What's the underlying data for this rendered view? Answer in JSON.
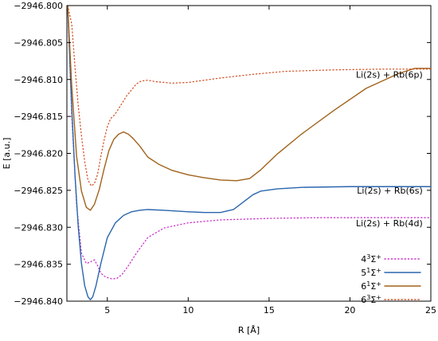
{
  "chart_data": {
    "type": "line",
    "title": "",
    "xlabel": "R [Å]",
    "ylabel": "E [a.u.]",
    "xlim": [
      2.5,
      25
    ],
    "ylim": [
      -2946.84,
      -2946.8
    ],
    "xticks": [
      5,
      10,
      15,
      20,
      25
    ],
    "xtick_labels": [
      "5",
      "10",
      "15",
      "20",
      "25"
    ],
    "yticks": [
      -2946.84,
      -2946.835,
      -2946.83,
      -2946.825,
      -2946.82,
      -2946.815,
      -2946.81,
      -2946.805,
      -2946.8
    ],
    "ytick_labels": [
      "−2946.840",
      "−2946.835",
      "−2946.830",
      "−2946.825",
      "−2946.820",
      "−2946.815",
      "−2946.810",
      "−2946.805",
      "−2946.800"
    ],
    "grid": false,
    "legend_position": "bottom-right",
    "annotations": [
      {
        "text": "Li(2s) + Rb(6p)",
        "x": 24.5,
        "y": -2946.8102
      },
      {
        "text": "Li(2s) + Rb(6s)",
        "x": 24.5,
        "y": -2946.8259
      },
      {
        "text": "Li(2s) + Rb(4d)",
        "x": 24.5,
        "y": -2946.8303
      }
    ],
    "series": [
      {
        "name": "4³Σ⁺",
        "label_main": "4",
        "label_sup": "3",
        "label_sym": "Σ",
        "label_sup2": "+",
        "color": "#cc33cc",
        "style": "dotted",
        "x": [
          2.55,
          2.8,
          3.1,
          3.4,
          3.7,
          3.95,
          4.2,
          4.4,
          4.6,
          4.8,
          5.0,
          5.3,
          5.6,
          5.9,
          6.3,
          6.8,
          7.5,
          8.5,
          10,
          12,
          15,
          18,
          21,
          25
        ],
        "y": [
          -2946.8,
          -2946.815,
          -2946.827,
          -2946.8335,
          -2946.8349,
          -2946.8347,
          -2946.8344,
          -2946.8352,
          -2946.8362,
          -2946.8366,
          -2946.8368,
          -2946.837,
          -2946.8369,
          -2946.8364,
          -2946.8352,
          -2946.8335,
          -2946.8314,
          -2946.8301,
          -2946.8294,
          -2946.829,
          -2946.8288,
          -2946.8287,
          -2946.8287,
          -2946.8287
        ]
      },
      {
        "name": "5¹Σ⁺",
        "label_main": "5",
        "label_sup": "1",
        "label_sym": "Σ",
        "label_sup2": "+",
        "color": "#2a66ad",
        "style": "solid",
        "x": [
          2.55,
          2.8,
          3.0,
          3.2,
          3.4,
          3.6,
          3.8,
          3.95,
          4.1,
          4.3,
          4.6,
          5.0,
          5.5,
          6.0,
          6.5,
          7.0,
          7.5,
          8.5,
          10,
          11,
          12,
          12.8,
          13.4,
          14.0,
          14.5,
          15.5,
          17,
          20,
          25
        ],
        "y": [
          -2946.8,
          -2946.8139,
          -2946.8229,
          -2946.8299,
          -2946.8349,
          -2946.8379,
          -2946.8394,
          -2946.8398,
          -2946.8394,
          -2946.8379,
          -2946.8349,
          -2946.8314,
          -2946.8294,
          -2946.8284,
          -2946.8279,
          -2946.8277,
          -2946.8276,
          -2946.8277,
          -2946.8279,
          -2946.828,
          -2946.828,
          -2946.8276,
          -2946.8266,
          -2946.8256,
          -2946.8251,
          -2946.8248,
          -2946.8246,
          -2946.8245,
          -2946.8245
        ]
      },
      {
        "name": "6¹Σ⁺",
        "label_main": "6",
        "label_sup": "1",
        "label_sym": "Σ",
        "label_sup2": "+",
        "color": "#a0621a",
        "style": "solid",
        "x": [
          2.55,
          2.8,
          3.1,
          3.4,
          3.7,
          3.95,
          4.2,
          4.5,
          4.8,
          5.1,
          5.4,
          5.7,
          6.0,
          6.3,
          6.6,
          7.0,
          7.5,
          8.2,
          9.0,
          10,
          11,
          12,
          13,
          13.8,
          14.5,
          15.5,
          17,
          19,
          21,
          23,
          24,
          25
        ],
        "y": [
          -2946.8,
          -2946.8109,
          -2946.8204,
          -2946.8251,
          -2946.8273,
          -2946.8277,
          -2946.8269,
          -2946.8249,
          -2946.8221,
          -2946.8196,
          -2946.8181,
          -2946.8174,
          -2946.8171,
          -2946.8174,
          -2946.818,
          -2946.819,
          -2946.8205,
          -2946.8215,
          -2946.8223,
          -2946.8229,
          -2946.8233,
          -2946.8236,
          -2946.8237,
          -2946.8234,
          -2946.8222,
          -2946.8201,
          -2946.8174,
          -2946.8142,
          -2946.8112,
          -2946.8092,
          -2946.8085,
          -2946.8085
        ]
      },
      {
        "name": "6³Σ⁺",
        "label_main": "6",
        "label_sup": "3",
        "label_sym": "Σ",
        "label_sup2": "+",
        "color": "#d4542a",
        "style": "dotted",
        "x": [
          2.55,
          2.8,
          3.0,
          3.2,
          3.4,
          3.6,
          3.8,
          4.0,
          4.2,
          4.4,
          4.6,
          4.8,
          5.0,
          5.2,
          5.4,
          5.6,
          5.8,
          6.0,
          6.2,
          6.5,
          6.8,
          7.1,
          7.5,
          8.0,
          9,
          10,
          11,
          12,
          14,
          16,
          19,
          22,
          25
        ],
        "y": [
          -2946.8,
          -2946.8025,
          -2946.8083,
          -2946.8135,
          -2946.8176,
          -2946.8211,
          -2946.8236,
          -2946.8244,
          -2946.8241,
          -2946.8228,
          -2946.8204,
          -2946.8182,
          -2946.8164,
          -2946.8153,
          -2946.8149,
          -2946.8143,
          -2946.8136,
          -2946.8129,
          -2946.8122,
          -2946.8114,
          -2946.8106,
          -2946.8102,
          -2946.8101,
          -2946.8103,
          -2946.8105,
          -2946.8104,
          -2946.8101,
          -2946.8098,
          -2946.8093,
          -2946.8089,
          -2946.8087,
          -2946.8086,
          -2946.8086
        ]
      }
    ]
  }
}
